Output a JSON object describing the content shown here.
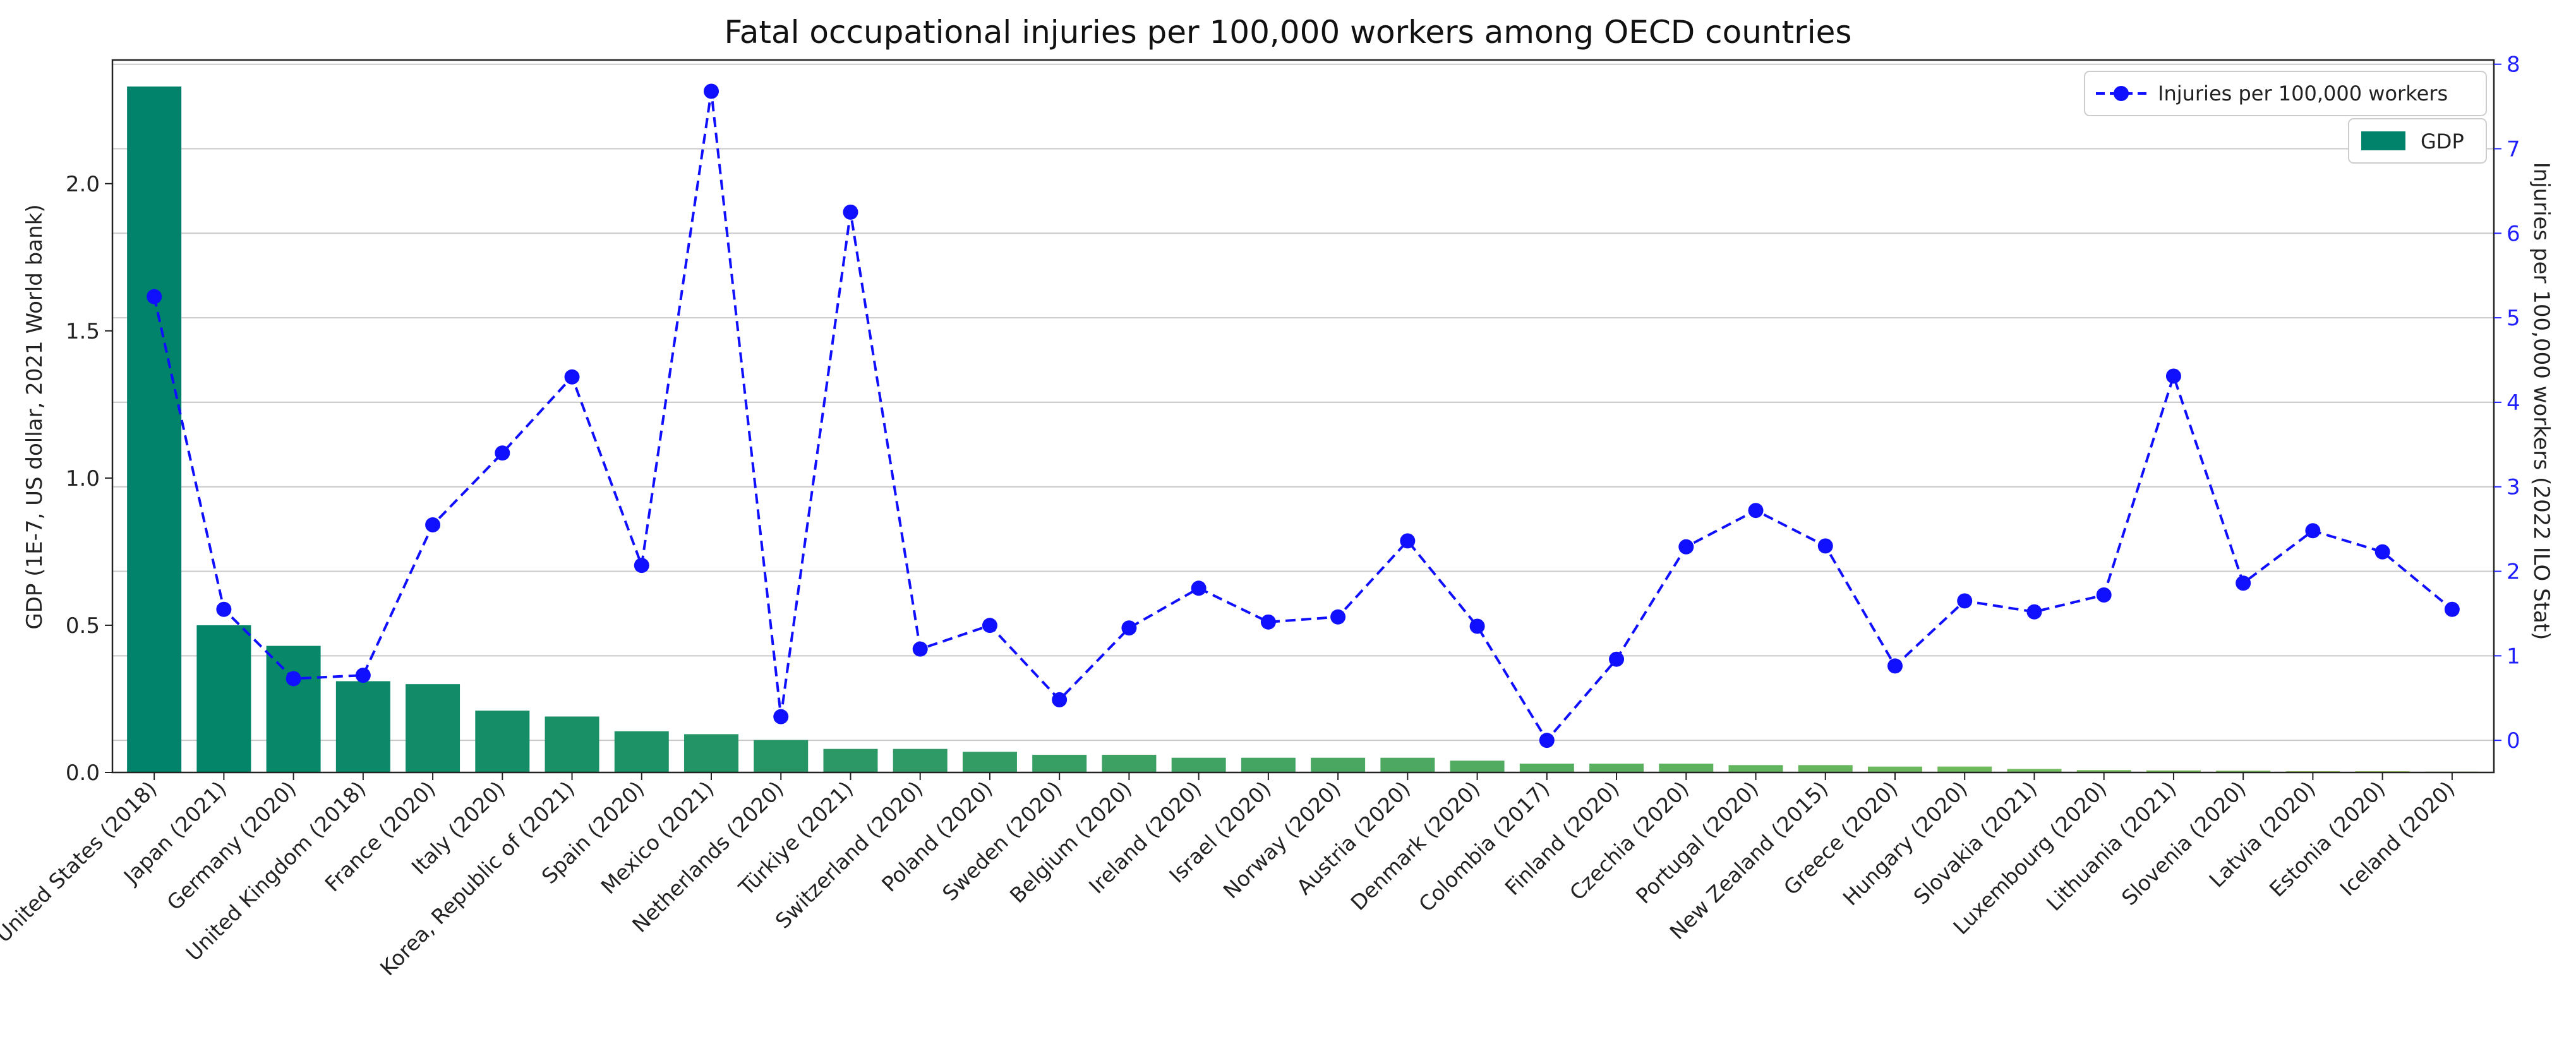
{
  "chart_data": {
    "type": "bar",
    "title": "Fatal occupational injuries per 100,000 workers among OECD countries",
    "categories": [
      "United States (2018)",
      "Japan (2021)",
      "Germany (2020)",
      "United Kingdom (2018)",
      "France (2020)",
      "Italy (2020)",
      "Korea, Republic of (2021)",
      "Spain (2020)",
      "Mexico (2021)",
      "Netherlands (2020)",
      "Türkiye (2021)",
      "Switzerland (2020)",
      "Poland (2020)",
      "Sweden (2020)",
      "Belgium (2020)",
      "Ireland (2020)",
      "Israel (2020)",
      "Norway (2020)",
      "Austria (2020)",
      "Denmark (2020)",
      "Colombia (2017)",
      "Finland (2020)",
      "Czechia (2020)",
      "Portugal (2020)",
      "New Zealand (2015)",
      "Greece (2020)",
      "Hungary (2020)",
      "Slovakia (2021)",
      "Luxembourg (2020)",
      "Lithuania (2021)",
      "Slovenia (2020)",
      "Latvia (2020)",
      "Estonia (2020)",
      "Iceland (2020)"
    ],
    "series": [
      {
        "name": "GDP",
        "axis": "left",
        "kind": "bar",
        "values": [
          2.33,
          0.5,
          0.43,
          0.31,
          0.3,
          0.21,
          0.19,
          0.14,
          0.13,
          0.11,
          0.08,
          0.08,
          0.07,
          0.06,
          0.06,
          0.05,
          0.05,
          0.05,
          0.05,
          0.04,
          0.03,
          0.03,
          0.03,
          0.025,
          0.025,
          0.02,
          0.02,
          0.012,
          0.008,
          0.007,
          0.006,
          0.004,
          0.004,
          0.003
        ]
      },
      {
        "name": "Injuries per 100,000 workers",
        "axis": "right",
        "kind": "line",
        "color": "#1010ff",
        "values": [
          5.25,
          1.55,
          0.73,
          0.77,
          2.55,
          3.4,
          4.3,
          2.07,
          7.68,
          0.28,
          6.25,
          1.08,
          1.36,
          0.48,
          1.33,
          1.8,
          1.4,
          1.46,
          2.36,
          1.35,
          0.0,
          0.96,
          2.29,
          2.72,
          2.3,
          0.88,
          1.65,
          1.52,
          1.72,
          4.31,
          1.86,
          2.48,
          2.23,
          1.55
        ]
      }
    ],
    "ylabel": "GDP (1E-7, US dollar, 2021 World bank)",
    "y2label": "Injuries per 100,000 workers (2022 ILO Stat)",
    "ylim": [
      0,
      2.42
    ],
    "y2lim": [
      -0.38,
      8.05
    ],
    "yticks": [
      "0.0",
      "0.5",
      "1.0",
      "1.5",
      "2.0"
    ],
    "y2ticks": [
      "0",
      "1",
      "2",
      "3",
      "4",
      "5",
      "6",
      "7",
      "8"
    ],
    "grid": true,
    "legend": "top-right",
    "colors": {
      "bar_dark": "#00836a",
      "bar_light": "#8dc95a",
      "line": "#1010ff",
      "grid": "#c8c8c8"
    }
  }
}
